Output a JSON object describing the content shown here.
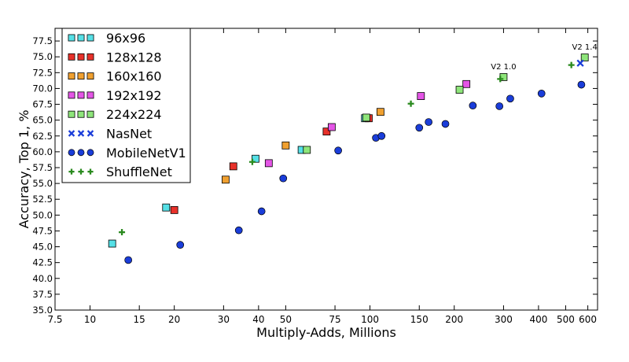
{
  "chart_data": {
    "type": "scatter",
    "title": "",
    "xlabel": "Multiply-Adds, Millions",
    "ylabel": "Accuracy, Top 1, %",
    "xscale": "log",
    "xlim": [
      7.5,
      650
    ],
    "ylim": [
      35.0,
      79.5
    ],
    "xticks": [
      7.5,
      10,
      15,
      20,
      30,
      40,
      50,
      75,
      100,
      150,
      200,
      300,
      400,
      500,
      600
    ],
    "xtick_labels": [
      "7.5",
      "10",
      "15",
      "20",
      "30",
      "40",
      "50",
      "75",
      "100",
      "150",
      "200",
      "300",
      "400",
      "500",
      "600"
    ],
    "yticks": [
      35.0,
      37.5,
      40.0,
      42.5,
      45.0,
      47.5,
      50.0,
      52.5,
      55.0,
      57.5,
      60.0,
      62.5,
      65.0,
      67.5,
      70.0,
      72.5,
      75.0,
      77.5
    ],
    "ytick_labels": [
      "35.0",
      "37.5",
      "40.0",
      "42.5",
      "45.0",
      "47.5",
      "50.0",
      "52.5",
      "55.0",
      "57.5",
      "60.0",
      "62.5",
      "65.0",
      "67.5",
      "70.0",
      "72.5",
      "75.0",
      "77.5"
    ],
    "grid": false,
    "legend_position": "upper-left",
    "series": [
      {
        "name": "96x96",
        "marker": "square",
        "color": "#55e0e6",
        "points": [
          [
            12.0,
            45.5
          ],
          [
            18.7,
            51.2
          ],
          [
            39.0,
            58.9
          ],
          [
            57.0,
            60.3
          ],
          [
            96.0,
            65.3
          ]
        ]
      },
      {
        "name": "128x128",
        "marker": "square",
        "color": "#e8312a",
        "points": [
          [
            20.0,
            50.8
          ],
          [
            32.5,
            57.7
          ],
          [
            70.0,
            63.2
          ],
          [
            99.0,
            65.3
          ]
        ]
      },
      {
        "name": "160x160",
        "marker": "square",
        "color": "#f0a030",
        "points": [
          [
            30.5,
            55.6
          ],
          [
            50.0,
            61.0
          ],
          [
            109.0,
            66.3
          ]
        ]
      },
      {
        "name": "192x192",
        "marker": "square",
        "color": "#e455e6",
        "points": [
          [
            43.5,
            58.2
          ],
          [
            73.0,
            63.9
          ],
          [
            152.0,
            68.8
          ],
          [
            221.0,
            70.7
          ]
        ]
      },
      {
        "name": "224x224",
        "marker": "square",
        "color": "#8ee57a",
        "points": [
          [
            59.5,
            60.3
          ],
          [
            97.0,
            65.4
          ],
          [
            209.0,
            69.8
          ],
          [
            300.0,
            71.8
          ],
          [
            585.0,
            74.9
          ]
        ]
      },
      {
        "name": "NasNet",
        "marker": "x",
        "color": "#1a3dd9",
        "points": [
          [
            564.0,
            74.0
          ]
        ]
      },
      {
        "name": "MobileNetV1",
        "marker": "circle",
        "color": "#1a3dd9",
        "points": [
          [
            13.7,
            42.9
          ],
          [
            21.0,
            45.3
          ],
          [
            34.0,
            47.6
          ],
          [
            41.0,
            50.6
          ],
          [
            49.0,
            55.8
          ],
          [
            77.0,
            60.2
          ],
          [
            105.0,
            62.2
          ],
          [
            110.0,
            62.5
          ],
          [
            150.0,
            63.8
          ],
          [
            162.0,
            64.7
          ],
          [
            186.0,
            64.4
          ],
          [
            233.0,
            67.3
          ],
          [
            290.0,
            67.2
          ],
          [
            317.0,
            68.4
          ],
          [
            410.0,
            69.2
          ],
          [
            569.0,
            70.6
          ]
        ]
      },
      {
        "name": "ShuffleNet",
        "marker": "plus",
        "color": "#2a8a1e",
        "points": [
          [
            13.0,
            47.3
          ],
          [
            38.0,
            58.4
          ],
          [
            140.0,
            67.6
          ],
          [
            292.0,
            71.5
          ],
          [
            524.0,
            73.7
          ]
        ]
      }
    ],
    "annotations": [
      {
        "text": "V2 1.0",
        "x": 300.0,
        "y": 71.8
      },
      {
        "text": "V2 1.4",
        "x": 585.0,
        "y": 74.9
      }
    ]
  }
}
